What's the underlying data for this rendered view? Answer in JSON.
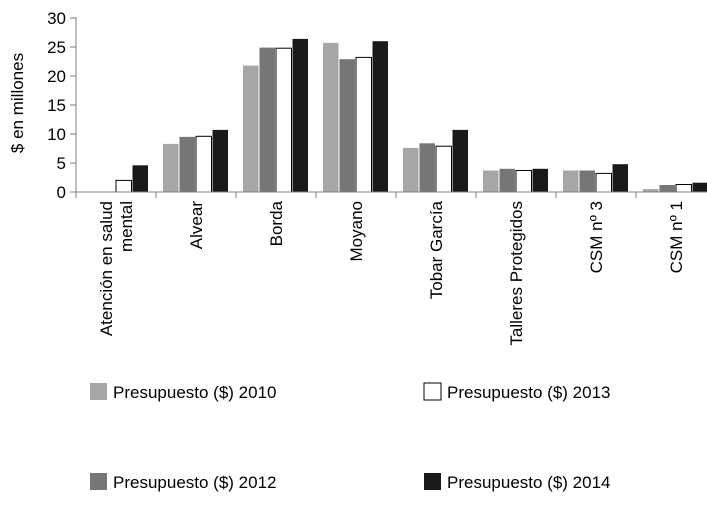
{
  "chart_data": {
    "type": "bar",
    "title": "",
    "xlabel": "",
    "ylabel": "$ en millones",
    "ylim": [
      0,
      30
    ],
    "yticks": [
      0,
      5,
      10,
      15,
      20,
      25,
      30
    ],
    "grid": false,
    "legend_position": "bottom",
    "categories": [
      [
        "Atención en salud",
        "mental"
      ],
      [
        "Alvear"
      ],
      [
        "Borda"
      ],
      [
        "Moyano"
      ],
      [
        "Tobar García"
      ],
      [
        "Talleres Protegidos"
      ],
      [
        "CSM nº 3"
      ],
      [
        "CSM nº 1"
      ]
    ],
    "series": [
      {
        "name": "Presupuesto ($) 2010",
        "color": "#a6a6a6",
        "values": [
          0,
          8.3,
          21.8,
          25.7,
          7.6,
          3.7,
          3.7,
          0.5
        ]
      },
      {
        "name": "Presupuesto ($) 2012",
        "color": "#767676",
        "values": [
          0,
          9.5,
          24.9,
          22.9,
          8.4,
          4.0,
          3.7,
          1.2
        ]
      },
      {
        "name": "Presupuesto ($) 2013",
        "color": "#ffffff",
        "values": [
          2.0,
          9.6,
          24.8,
          23.2,
          7.9,
          3.7,
          3.2,
          1.3
        ]
      },
      {
        "name": "Presupuesto ($) 2014",
        "color": "#1a1a1a",
        "values": [
          4.6,
          10.7,
          26.4,
          26.0,
          10.7,
          4.0,
          4.8,
          1.6
        ]
      }
    ],
    "legend_order": [
      0,
      2,
      1,
      3
    ]
  }
}
